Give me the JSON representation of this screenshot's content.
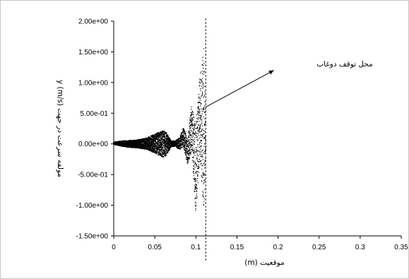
{
  "chart_data": {
    "type": "scatter",
    "title": "",
    "xlabel": "موقعیت (m)",
    "ylabel": "مولفه سرعت در جهت y (m/s)",
    "xlim": [
      0,
      0.35
    ],
    "ylim": [
      -1.5,
      2.0
    ],
    "x_ticks": [
      0,
      0.05,
      0.1,
      0.15,
      0.2,
      0.25,
      0.3,
      0.35
    ],
    "x_tick_labels": [
      "0",
      "0.05",
      "0.1",
      "0.15",
      "0.2",
      "0.25",
      "0.3",
      "0.35"
    ],
    "y_ticks": [
      2.0,
      1.5,
      1.0,
      0.5,
      0.0,
      -0.5,
      -1.0,
      -1.5
    ],
    "y_tick_labels": [
      "2.00e+00",
      "1.50e+00",
      "1.00e+00",
      "5.00e-01",
      "0.00e+00",
      "-5.00e-01",
      "-1.00e+00",
      "-1.50e+00"
    ],
    "grid": false,
    "legend": "none",
    "marker_color": "#000000",
    "series": [
      {
        "envelope": [
          {
            "x": 0.0,
            "ymin": -0.01,
            "ymax": 0.03
          },
          {
            "x": 0.01,
            "ymin": -0.04,
            "ymax": 0.05
          },
          {
            "x": 0.02,
            "ymin": -0.06,
            "ymax": 0.06
          },
          {
            "x": 0.03,
            "ymin": -0.07,
            "ymax": 0.07
          },
          {
            "x": 0.04,
            "ymin": -0.09,
            "ymax": 0.1
          },
          {
            "x": 0.05,
            "ymin": -0.15,
            "ymax": 0.16
          },
          {
            "x": 0.056,
            "ymin": -0.2,
            "ymax": 0.2
          },
          {
            "x": 0.06,
            "ymin": -0.22,
            "ymax": 0.22
          },
          {
            "x": 0.064,
            "ymin": -0.19,
            "ymax": 0.19
          },
          {
            "x": 0.07,
            "ymin": -0.05,
            "ymax": 0.05
          },
          {
            "x": 0.075,
            "ymin": -0.04,
            "ymax": 0.05
          },
          {
            "x": 0.08,
            "ymin": -0.1,
            "ymax": 0.1
          },
          {
            "x": 0.085,
            "ymin": -0.05,
            "ymax": 0.27
          },
          {
            "x": 0.09,
            "ymin": -0.35,
            "ymax": 0.1
          },
          {
            "x": 0.095,
            "ymin": -0.1,
            "ymax": 0.65
          },
          {
            "x": 0.1,
            "ymin": -1.15,
            "ymax": 0.3
          },
          {
            "x": 0.105,
            "ymin": -0.2,
            "ymax": 1.1
          },
          {
            "x": 0.11,
            "ymin": -1.2,
            "ymax": 1.7
          },
          {
            "x": 0.112,
            "ymin": -0.15,
            "ymax": 0.15
          }
        ]
      }
    ],
    "reference_line": {
      "x": 0.112,
      "style": "dashed"
    },
    "annotation": {
      "text": "محل توقف دوغاب",
      "arrow_from": {
        "x": 0.195,
        "y": 1.2
      },
      "arrow_to": {
        "x": 0.112,
        "y": 0.6
      }
    }
  }
}
